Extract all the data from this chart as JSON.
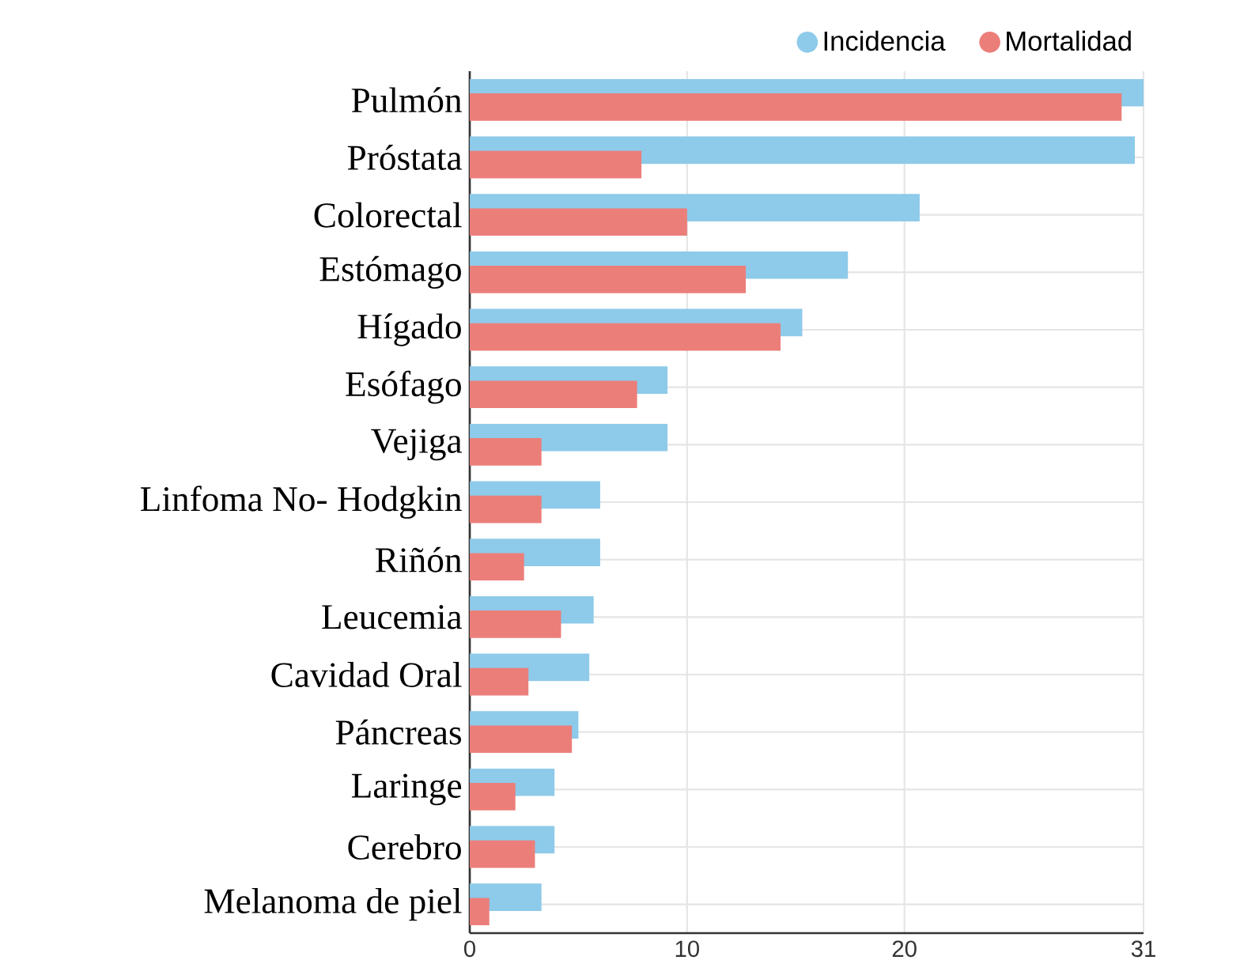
{
  "chart_data": {
    "type": "bar",
    "orientation": "horizontal",
    "categories": [
      "Pulmón",
      "Próstata",
      "Colorectal",
      "Estómago",
      "Hígado",
      "Esófago",
      "Vejiga",
      "Linfoma No- Hodgkin",
      "Riñón",
      "Leucemia",
      "Cavidad Oral",
      "Páncreas",
      "Laringe",
      "Cerebro",
      "Melanoma de piel"
    ],
    "series": [
      {
        "name": "Incidencia",
        "color": "#8ecae9",
        "values": [
          31.0,
          30.6,
          20.7,
          17.4,
          15.3,
          9.1,
          9.1,
          6.0,
          6.0,
          5.7,
          5.5,
          5.0,
          3.9,
          3.9,
          3.3
        ]
      },
      {
        "name": "Mortalidad",
        "color": "#ec7e7a",
        "values": [
          30.0,
          7.9,
          10.0,
          12.7,
          14.3,
          7.7,
          3.3,
          3.3,
          2.5,
          4.2,
          2.7,
          4.7,
          2.1,
          3.0,
          0.9
        ]
      }
    ],
    "xlim": [
      0,
      31
    ],
    "xticks": [
      0,
      10,
      20,
      31
    ],
    "grid": true,
    "legend": "top right"
  }
}
